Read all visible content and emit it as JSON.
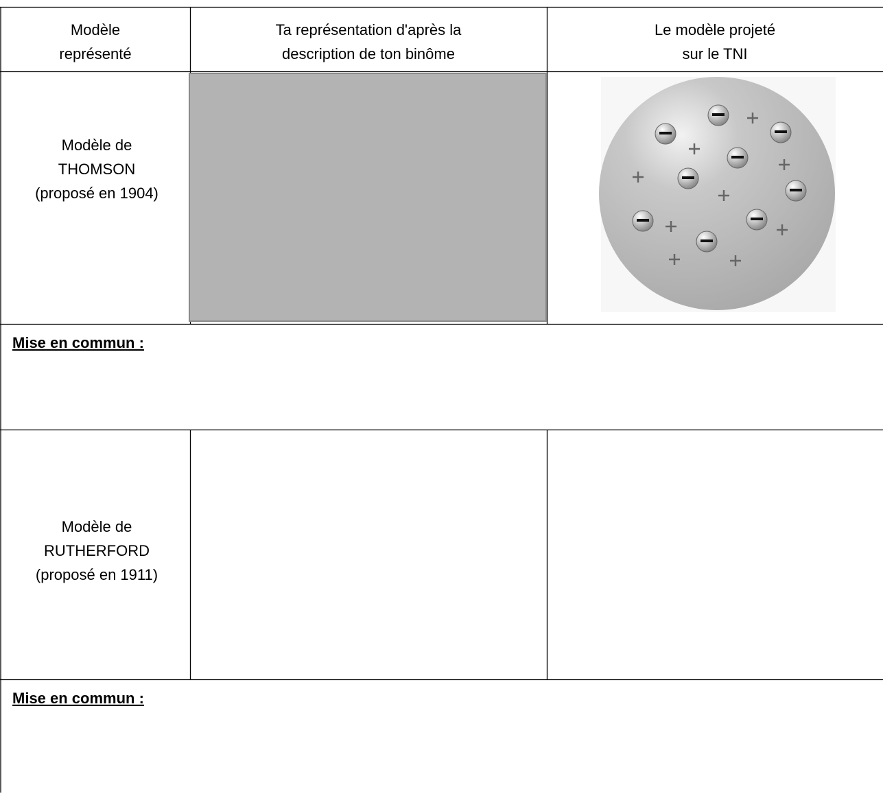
{
  "table": {
    "header": [
      [
        "Modèle",
        "représenté"
      ],
      [
        "Ta représentation d'après la",
        "description de ton binôme"
      ],
      [
        "Le modèle projeté",
        "sur le TNI"
      ]
    ],
    "rows": [
      {
        "model": [
          "Modèle de",
          "THOMSON",
          "(proposé en 1904)"
        ],
        "note": "Mise en commun :"
      },
      {
        "model": [
          "Modèle de",
          "RUTHERFORD",
          "(proposé en 1911)"
        ],
        "note": "Mise en commun :"
      }
    ]
  }
}
